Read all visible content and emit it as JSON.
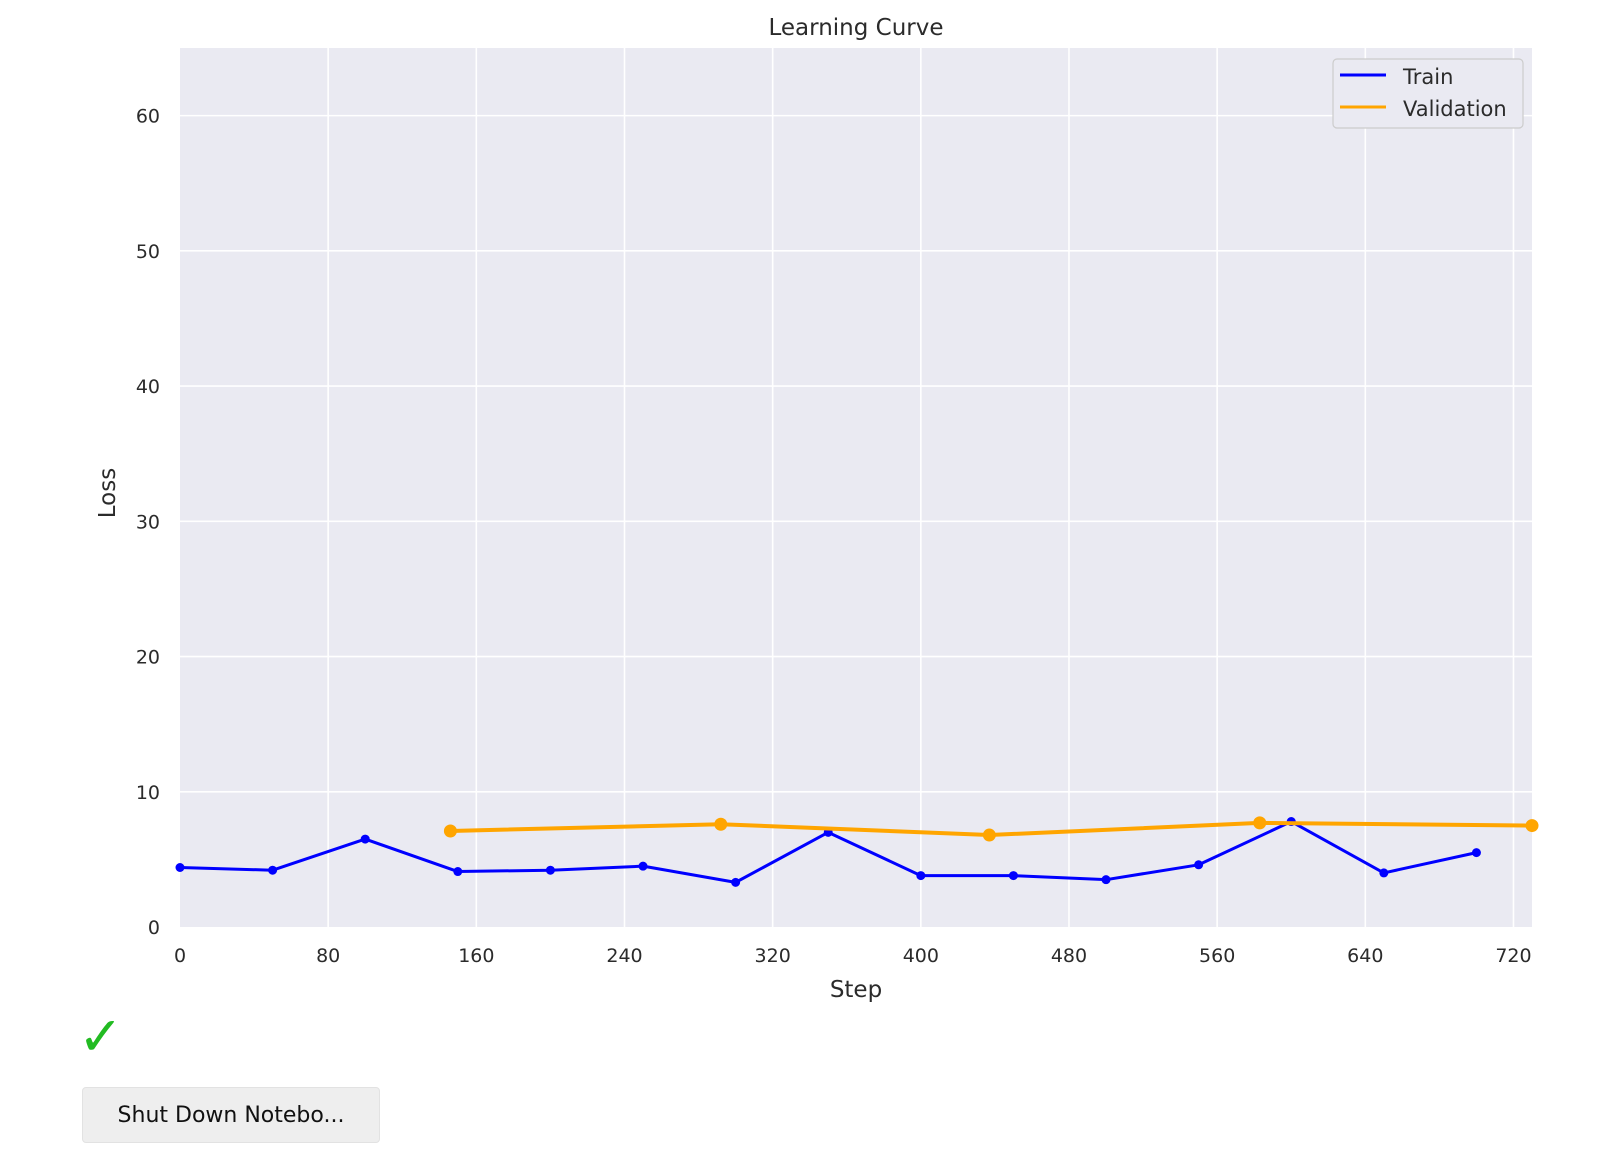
{
  "chart_data": {
    "type": "line",
    "title": "Learning Curve",
    "xlabel": "Step",
    "ylabel": "Loss",
    "xlim": [
      0,
      730
    ],
    "ylim": [
      0,
      65
    ],
    "xticks": [
      0,
      80,
      160,
      240,
      320,
      400,
      480,
      560,
      640,
      720
    ],
    "yticks": [
      0,
      10,
      20,
      30,
      40,
      50,
      60
    ],
    "grid": true,
    "legend_position": "top-right",
    "series": [
      {
        "name": "Train",
        "color": "#0000ff",
        "x": [
          0,
          50,
          100,
          150,
          200,
          250,
          300,
          350,
          400,
          450,
          500,
          550,
          600,
          650,
          700
        ],
        "y": [
          4.4,
          4.2,
          6.5,
          4.1,
          4.2,
          4.5,
          3.3,
          7.0,
          3.8,
          3.8,
          3.5,
          4.6,
          7.8,
          4.0,
          5.5
        ]
      },
      {
        "name": "Validation",
        "color": "#ffa500",
        "x": [
          146,
          292,
          437,
          583,
          730
        ],
        "y": [
          7.1,
          7.6,
          6.8,
          7.7,
          7.5
        ]
      }
    ]
  },
  "status": {
    "icon": "check-icon",
    "glyph": "✓",
    "color": "#22bb22"
  },
  "button": {
    "label": "Shut Down Notebo..."
  }
}
